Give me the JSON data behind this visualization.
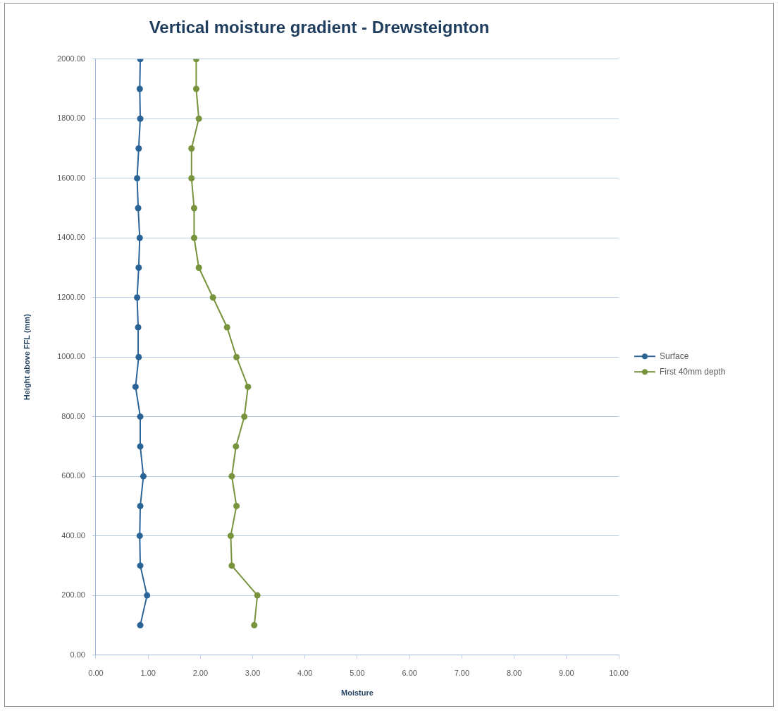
{
  "chart_data": {
    "type": "line",
    "title": "Vertical moisture gradient - Drewsteignton",
    "xlabel": "Moisture",
    "ylabel": "Height above FFL (mm)",
    "series": [
      {
        "name": "Surface",
        "color": "#2a6496",
        "x": [
          0.85,
          0.98,
          0.85,
          0.84,
          0.85,
          0.91,
          0.85,
          0.85,
          0.76,
          0.82,
          0.81,
          0.79,
          0.82,
          0.84,
          0.81,
          0.79,
          0.82,
          0.85,
          0.84,
          0.85
        ],
        "values": [
          100,
          200,
          300,
          400,
          500,
          600,
          700,
          800,
          900,
          1000,
          1100,
          1200,
          1300,
          1400,
          1500,
          1600,
          1700,
          1800,
          1900,
          2000
        ]
      },
      {
        "name": "First 40mm depth",
        "color": "#77933c",
        "x": [
          3.03,
          3.09,
          2.6,
          2.58,
          2.69,
          2.6,
          2.68,
          2.84,
          2.91,
          2.69,
          2.51,
          2.24,
          1.97,
          1.88,
          1.88,
          1.83,
          1.83,
          1.97,
          1.92,
          1.92
        ],
        "values": [
          100,
          200,
          300,
          400,
          500,
          600,
          700,
          800,
          900,
          1000,
          1100,
          1200,
          1300,
          1400,
          1500,
          1600,
          1700,
          1800,
          1900,
          2000
        ]
      }
    ],
    "xlim": [
      0,
      10
    ],
    "xticks": [
      {
        "value": 0,
        "label": "0.00"
      },
      {
        "value": 1,
        "label": "1.00"
      },
      {
        "value": 2,
        "label": "2.00"
      },
      {
        "value": 3,
        "label": "3.00"
      },
      {
        "value": 4,
        "label": "4.00"
      },
      {
        "value": 5,
        "label": "5.00"
      },
      {
        "value": 6,
        "label": "6.00"
      },
      {
        "value": 7,
        "label": "7.00"
      },
      {
        "value": 8,
        "label": "8.00"
      },
      {
        "value": 9,
        "label": "9.00"
      },
      {
        "value": 10,
        "label": "10.00"
      }
    ],
    "ylim": [
      0,
      2000
    ],
    "yticks": [
      {
        "value": 0,
        "label": "0.00"
      },
      {
        "value": 200,
        "label": "200.00"
      },
      {
        "value": 400,
        "label": "400.00"
      },
      {
        "value": 600,
        "label": "600.00"
      },
      {
        "value": 800,
        "label": "800.00"
      },
      {
        "value": 1000,
        "label": "1000.00"
      },
      {
        "value": 1200,
        "label": "1200.00"
      },
      {
        "value": 1400,
        "label": "1400.00"
      },
      {
        "value": 1600,
        "label": "1600.00"
      },
      {
        "value": 1800,
        "label": "1800.00"
      },
      {
        "value": 2000,
        "label": "2000.00"
      }
    ],
    "grid": "y",
    "legend": "right",
    "marker": "circle",
    "line_style": "solid"
  }
}
